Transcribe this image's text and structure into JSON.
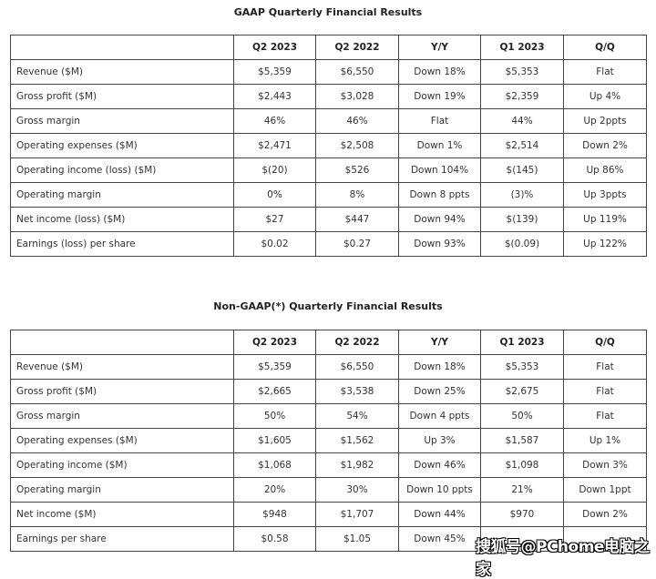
{
  "tables": [
    {
      "title": "GAAP Quarterly Financial Results",
      "headers": [
        "",
        "Q2 2023",
        "Q2 2022",
        "Y/Y",
        "Q1 2023",
        "Q/Q"
      ],
      "rows": [
        [
          "Revenue ($M)",
          "$5,359",
          "$6,550",
          "Down 18%",
          "$5,353",
          "Flat"
        ],
        [
          "Gross profit ($M)",
          "$2,443",
          "$3,028",
          "Down 19%",
          "$2,359",
          "Up 4%"
        ],
        [
          "Gross margin",
          "46%",
          "46%",
          "Flat",
          "44%",
          "Up 2ppts"
        ],
        [
          "Operating expenses ($M)",
          "$2,471",
          "$2,508",
          "Down 1%",
          "$2,514",
          "Down 2%"
        ],
        [
          "Operating income (loss) ($M)",
          "$(20)",
          "$526",
          "Down 104%",
          "$(145)",
          "Up 86%"
        ],
        [
          "Operating margin",
          "0%",
          "8%",
          "Down 8 ppts",
          "(3)%",
          "Up 3ppts"
        ],
        [
          "Net income (loss) ($M)",
          "$27",
          "$447",
          "Down 94%",
          "$(139)",
          "Up 119%"
        ],
        [
          "Earnings (loss) per share",
          "$0.02",
          "$0.27",
          "Down 93%",
          "$(0.09)",
          "Up 122%"
        ]
      ]
    },
    {
      "title": "Non-GAAP(*) Quarterly Financial Results",
      "headers": [
        "",
        "Q2 2023",
        "Q2 2022",
        "Y/Y",
        "Q1 2023",
        "Q/Q"
      ],
      "rows": [
        [
          "Revenue ($M)",
          "$5,359",
          "$6,550",
          "Down 18%",
          "$5,353",
          "Flat"
        ],
        [
          "Gross profit ($M)",
          "$2,665",
          "$3,538",
          "Down 25%",
          "$2,675",
          "Flat"
        ],
        [
          "Gross margin",
          "50%",
          "54%",
          "Down 4 ppts",
          "50%",
          "Flat"
        ],
        [
          "Operating expenses ($M)",
          "$1,605",
          "$1,562",
          "Up 3%",
          "$1,587",
          "Up 1%"
        ],
        [
          "Operating income ($M)",
          "$1,068",
          "$1,982",
          "Down 46%",
          "$1,098",
          "Down 3%"
        ],
        [
          "Operating margin",
          "20%",
          "30%",
          "Down 10 ppts",
          "21%",
          "Down 1ppt"
        ],
        [
          "Net income ($M)",
          "$948",
          "$1,707",
          "Down 44%",
          "$970",
          "Down 2%"
        ],
        [
          "Earnings per share",
          "$0.58",
          "$1.05",
          "Down 45%",
          "",
          ""
        ]
      ]
    }
  ],
  "watermark": "搜狐号@PChome电脑之家"
}
